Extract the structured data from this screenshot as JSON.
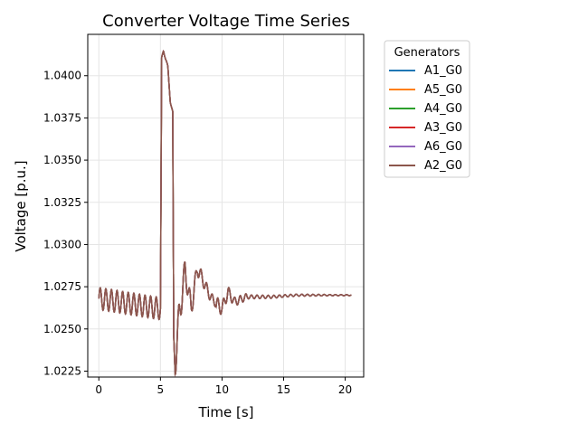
{
  "chart_data": {
    "type": "line",
    "title": "Converter Voltage Time Series",
    "xlabel": "Time [s]",
    "ylabel": "Voltage [p.u.]",
    "xlim": [
      -0.9,
      21.5
    ],
    "ylim": [
      1.02215,
      1.04245
    ],
    "xticks": [
      0,
      5,
      10,
      15,
      20
    ],
    "yticks": [
      1.0225,
      1.025,
      1.0275,
      1.03,
      1.0325,
      1.035,
      1.0375,
      1.04
    ],
    "xtick_labels": [
      "0",
      "5",
      "10",
      "15",
      "20"
    ],
    "ytick_labels": [
      "1.0225",
      "1.0250",
      "1.0275",
      "1.0300",
      "1.0325",
      "1.0350",
      "1.0375",
      "1.0400"
    ],
    "grid": true,
    "legend": {
      "title": "Generators",
      "position": "outside-right-top"
    },
    "series": [
      {
        "name": "A1_G0",
        "color": "#1f77b4"
      },
      {
        "name": "A5_G0",
        "color": "#ff7f0e"
      },
      {
        "name": "A4_G0",
        "color": "#2ca02c"
      },
      {
        "name": "A3_G0",
        "color": "#d62728"
      },
      {
        "name": "A6_G0",
        "color": "#9467bd"
      },
      {
        "name": "A2_G0",
        "color": "#8c564b"
      }
    ],
    "shared_trace": {
      "description_points": [
        [
          0.0,
          1.0268
        ],
        [
          5.0,
          1.0262
        ],
        [
          5.1,
          1.041
        ],
        [
          5.25,
          1.0415
        ],
        [
          5.6,
          1.0405
        ],
        [
          5.8,
          1.0385
        ],
        [
          6.0,
          1.0378
        ],
        [
          6.08,
          1.0238
        ],
        [
          6.2,
          1.0231
        ],
        [
          6.5,
          1.0256
        ],
        [
          7.0,
          1.0285
        ],
        [
          7.5,
          1.0262
        ],
        [
          8.0,
          1.0286
        ],
        [
          8.5,
          1.0278
        ],
        [
          9.0,
          1.027
        ],
        [
          9.5,
          1.0265
        ],
        [
          10.0,
          1.0262
        ],
        [
          10.5,
          1.0272
        ],
        [
          11.0,
          1.0266
        ],
        [
          12.0,
          1.0269
        ],
        [
          14.0,
          1.0269
        ],
        [
          16.0,
          1.027
        ],
        [
          18.0,
          1.027
        ],
        [
          20.5,
          1.027
        ]
      ]
    }
  }
}
